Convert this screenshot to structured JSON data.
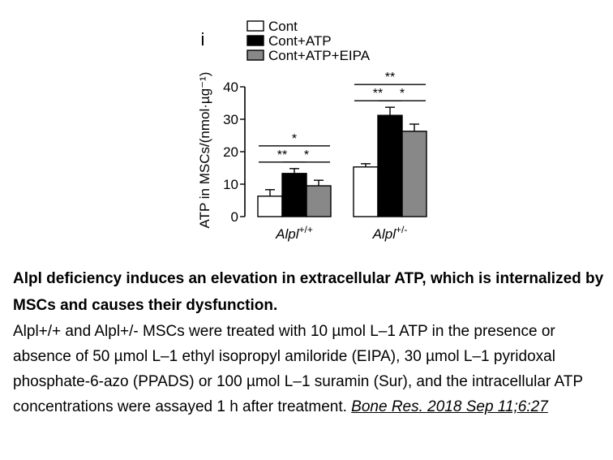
{
  "panel_label": "i",
  "chart_data": {
    "type": "bar",
    "ylabel": "ATP in MSCs/(nmol·µg⁻¹)",
    "ylim": [
      0,
      40
    ],
    "yticks": [
      0,
      10,
      20,
      30,
      40
    ],
    "categories": [
      {
        "base": "Alpl",
        "sup": "+/+"
      },
      {
        "base": "Alpl",
        "sup": "+/-"
      }
    ],
    "series": [
      {
        "name": "Cont",
        "color": "#ffffff",
        "values": [
          6.3,
          15.3
        ],
        "errors": [
          2.0,
          1.0
        ]
      },
      {
        "name": "Cont+ATP",
        "color": "#000000",
        "values": [
          13.3,
          31.2
        ],
        "errors": [
          1.5,
          2.5
        ]
      },
      {
        "name": "Cont+ATP+EIPA",
        "color": "#888888",
        "values": [
          9.5,
          26.3
        ],
        "errors": [
          1.7,
          2.2
        ]
      }
    ],
    "legend_position": "top",
    "significance": [
      {
        "category": 0,
        "from": 0,
        "to": 2,
        "label": "*",
        "level": 2
      },
      {
        "category": 0,
        "from": 0,
        "to": 1,
        "label": "**",
        "level": 1
      },
      {
        "category": 0,
        "from": 1,
        "to": 2,
        "label": "*",
        "level": 1
      },
      {
        "category": 1,
        "from": 0,
        "to": 2,
        "label": "**",
        "level": 2
      },
      {
        "category": 1,
        "from": 0,
        "to": 1,
        "label": "**",
        "level": 1
      },
      {
        "category": 1,
        "from": 1,
        "to": 2,
        "label": "*",
        "level": 1
      }
    ]
  },
  "caption": {
    "title": "Alpl deficiency induces an elevation in extracellular ATP, which is internalized by MSCs and causes their dysfunction.",
    "body": "Alpl+/+ and Alpl+/- MSCs were treated with 10 µmol L–1 ATP in the presence or absence of 50 µmol L–1 ethyl isopropyl amiloride (EIPA), 30 µmol L–1 pyridoxal phosphate-6-azo (PPADS) or 100 µmol L–1 suramin (Sur), and the intracellular ATP concentrations were assayed 1 h after treatment. ",
    "link": "Bone Res. 2018 Sep 11;6:27"
  }
}
